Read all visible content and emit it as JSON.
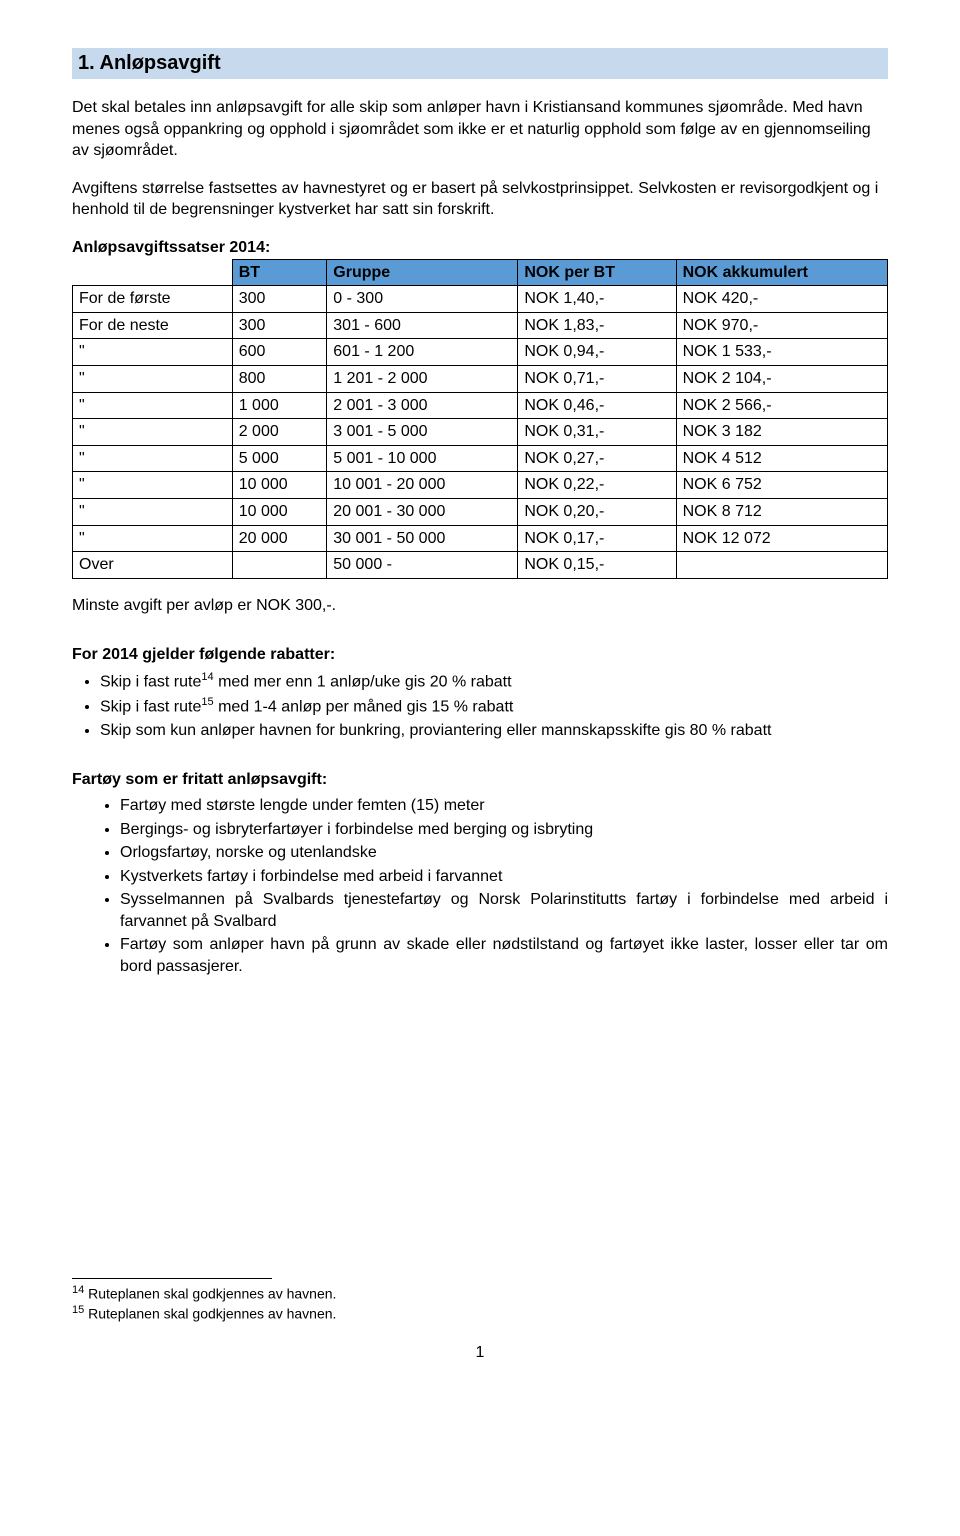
{
  "header": {
    "title": "1. Anløpsavgift"
  },
  "intro": {
    "p1": "Det skal betales inn anløpsavgift for alle skip som anløper havn i Kristiansand kommunes sjøområde. Med havn menes også oppankring og opphold i sjøområdet som ikke er et naturlig opphold som følge av en gjennomseiling av sjøområdet.",
    "p2": "Avgiftens størrelse fastsettes av havnestyret og er basert på selvkostprinsippet. Selvkosten er revisorgodkjent og i henhold til de begrensninger kystverket har satt sin forskrift."
  },
  "table": {
    "caption": "Anløpsavgiftssatser 2014:",
    "columns": [
      "",
      "BT",
      "Gruppe",
      "NOK per BT",
      "NOK akkumulert"
    ],
    "header_bg": "#5b9bd5",
    "rows": [
      [
        "For de første",
        "300",
        "0 - 300",
        "NOK 1,40,-",
        "NOK 420,-"
      ],
      [
        "For de neste",
        "300",
        "301 - 600",
        "NOK 1,83,-",
        "NOK 970,-"
      ],
      [
        "\"",
        "600",
        "601 - 1 200",
        "NOK 0,94,-",
        "NOK 1 533,-"
      ],
      [
        "\"",
        "800",
        "1 201 - 2 000",
        "NOK 0,71,-",
        "NOK 2 104,-"
      ],
      [
        "\"",
        "1 000",
        "2 001 - 3 000",
        "NOK 0,46,-",
        "NOK 2 566,-"
      ],
      [
        "\"",
        "2 000",
        "3 001 - 5 000",
        "NOK 0,31,-",
        "NOK 3 182"
      ],
      [
        "\"",
        "5 000",
        "5 001 - 10 000",
        "NOK 0,27,-",
        "NOK 4 512"
      ],
      [
        "\"",
        "10 000",
        "10 001 - 20 000",
        "NOK 0,22,-",
        "NOK 6 752"
      ],
      [
        "\"",
        "10 000",
        "20 001 - 30 000",
        "NOK 0,20,-",
        "NOK 8 712"
      ],
      [
        "\"",
        "20 000",
        "30 001 - 50 000",
        "NOK 0,17,-",
        "NOK 12 072"
      ],
      [
        "Over",
        "",
        "50 000 -",
        "NOK 0,15,-",
        ""
      ]
    ]
  },
  "min_fee": "Minste avgift per avløp er NOK 300,-.",
  "discounts": {
    "heading": "For 2014 gjelder følgende rabatter:",
    "items": [
      {
        "pre": "Skip i fast rute",
        "sup": "14",
        "post": " med mer enn 1 anløp/uke gis 20 % rabatt"
      },
      {
        "pre": "Skip i fast rute",
        "sup": "15",
        "post": " med 1-4 anløp per måned gis 15 % rabatt"
      },
      {
        "pre": "Skip som kun anløper havnen for bunkring, proviantering eller mannskapsskifte gis 80 % rabatt",
        "sup": "",
        "post": ""
      }
    ]
  },
  "exempt": {
    "heading": "Fartøy som er fritatt anløpsavgift:",
    "items": [
      "Fartøy med største lengde under femten (15) meter",
      "Bergings- og isbryterfartøyer i forbindelse med berging og isbryting",
      "Orlogsfartøy, norske og utenlandske",
      "Kystverkets fartøy i forbindelse med arbeid i farvannet",
      "Sysselmannen på Svalbards tjenestefartøy og Norsk Polarinstitutts fartøy i forbindelse med arbeid i farvannet på Svalbard",
      "Fartøy som anløper havn på grunn av skade eller nødstilstand og fartøyet ikke laster, losser eller tar om bord passasjerer."
    ]
  },
  "footnotes": {
    "f14": {
      "num": "14",
      "text": " Ruteplanen skal godkjennes av havnen."
    },
    "f15": {
      "num": "15",
      "text": " Ruteplanen skal godkjennes av havnen."
    }
  },
  "page_number": "1"
}
